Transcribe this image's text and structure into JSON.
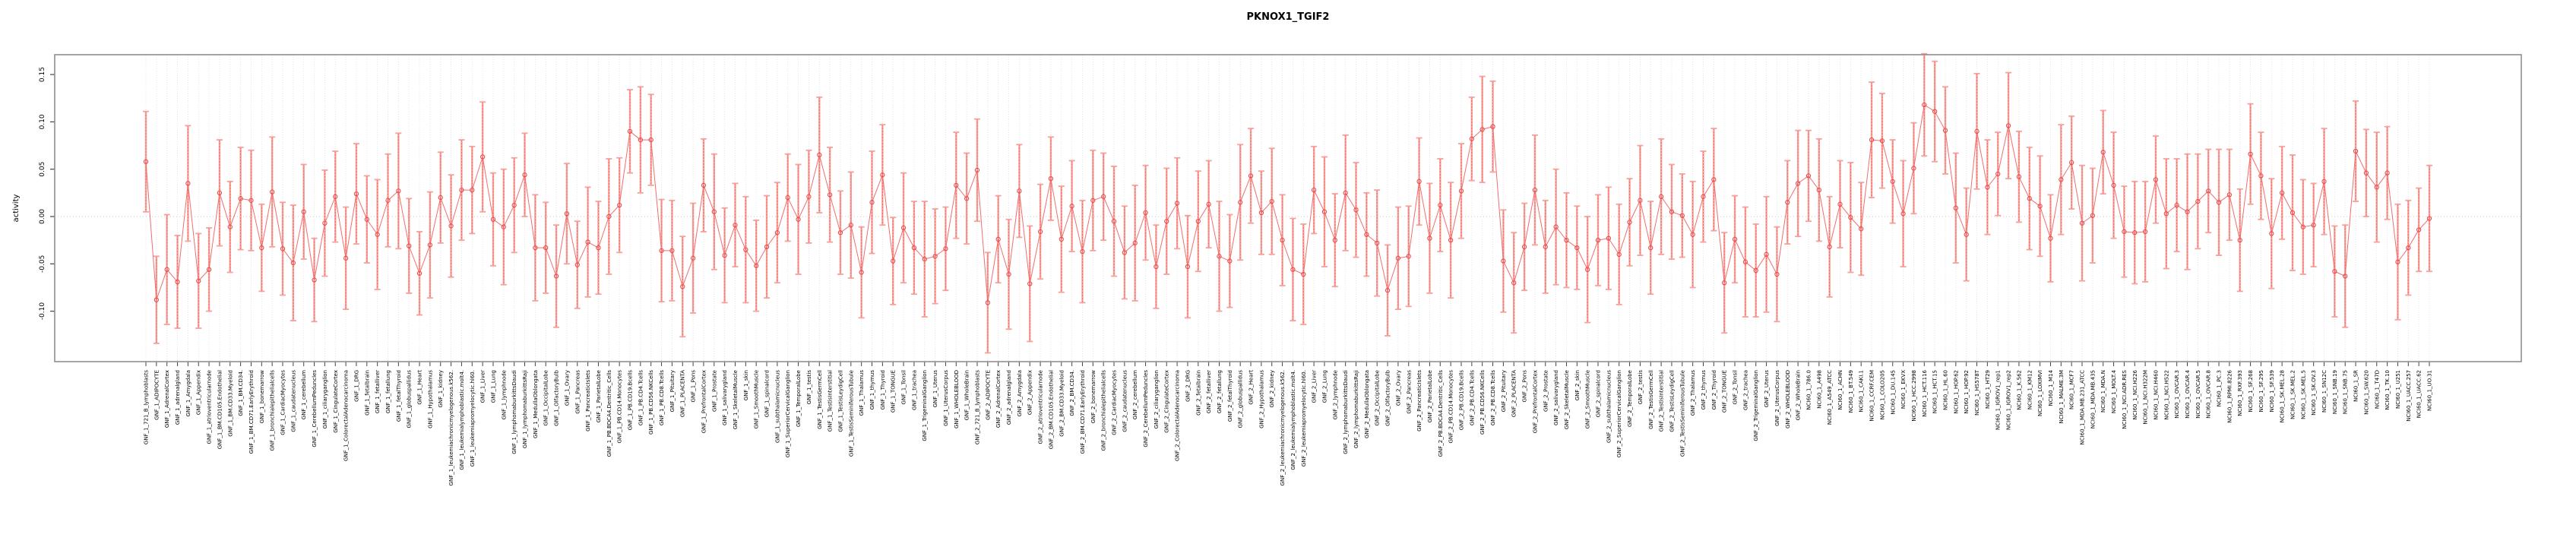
{
  "title": "PKNOX1_TGIF2",
  "colors": {
    "point": "#e84a4a",
    "line": "#f26d6d",
    "error_bar": "#f8a09a",
    "error_bar_inner": "#ef5350",
    "grid": "#dedede",
    "zero_line": "#cccccc",
    "box": "#8f8f8f",
    "tick": "#444444",
    "text": "#000000"
  },
  "chart_data": {
    "type": "line",
    "title": "PKNOX1_TGIF2",
    "xlabel": "",
    "ylabel": "activity",
    "ylim": [
      -0.153,
      0.171
    ],
    "grid": "vertical dotted gridline at every category; dotted horizontal line at 0",
    "legend": "none",
    "marker": "open-circle with salmon error bars (capped)",
    "yticks": [
      0.15,
      0.1,
      0.05,
      0.0,
      -0.05,
      -0.1
    ],
    "ytick_labels": [
      "0.15",
      "0.10",
      "0.05",
      "0.00",
      "-0.05",
      "-0.10"
    ],
    "categories": [
      "GNF_1_721_B_lymphoblasts",
      "GNF_1_ADIPOCYTE",
      "GNF_1_AdrenalCortex",
      "GNF_1_adrenalgland",
      "GNF_1_Amygdala",
      "GNF_1_Appendix",
      "GNF_1_atrioventricularnode",
      "GNF_1_BM.CD105.Endothelial",
      "GNF_1_BM.CD33.Myeloid",
      "GNF_1_BM.CD34.",
      "GNF_1_BM.CD71.EarlyErythroid",
      "GNF_1_bonemarrow",
      "GNF_1_bronchialepithelialcells",
      "GNF_1_CardiacMyocytes",
      "GNF_1_caudatenucleus",
      "GNF_1_cerebellum",
      "GNF_1_CerebellumPeduncles",
      "GNF_1_ciliaryganglion",
      "GNF_1_CingulateCortex",
      "GNF_1_ColorectalAdenocarcinoma",
      "GNF_1_DRG",
      "GNF_1_fetalbrain",
      "GNF_1_fetalliver",
      "GNF_1_fetallung",
      "GNF_1_fetalThyroid",
      "GNF_1_globuspallidus",
      "GNF_1_Heart",
      "GNF_1_Hypothalamus",
      "GNF_1_kidney",
      "GNF_1_leukemiachronicmyelogenous.k562.",
      "GNF_1_leukemialymphoblastic.molt4.",
      "GNF_1_leukemiapromyelocytic.hl60.",
      "GNF_1_Liver",
      "GNF_1_Lung",
      "GNF_1_lymphnode",
      "GNF_1_lymphomaburkittsDaudi",
      "GNF_1_lymphomaburkittsRaji",
      "GNF_1_MedullaOblongata",
      "GNF_1_OccipitalLobe",
      "GNF_1_OlfactoryBulb",
      "GNF_1_Ovary",
      "GNF_1_Pancreas",
      "GNF_1_PancreaticIslets",
      "GNF_1_ParietalLobe",
      "GNF_1_PB.BDCA4.Dentritic_Cells",
      "GNF_1_PB.CD14.Monocytes",
      "GNF_1_PB.CD19.Bcells",
      "GNF_1_PB.CD4.Tcells",
      "GNF_1_PB.CD56.NKCells",
      "GNF_1_PB.CD8.Tcells",
      "GNF_1_Pituitary",
      "GNF_1_PLACENTA",
      "GNF_1_Pons",
      "GNF_1_PrefrontalCortex",
      "GNF_1_Prostate",
      "GNF_1_salivarygland",
      "GNF_1_SkeletalMuscle",
      "GNF_1_skin",
      "GNF_1_SmoothMuscle",
      "GNF_1_spinalcord",
      "GNF_1_subthalamicnucleus",
      "GNF_1_SuperiorCervicalGanglion",
      "GNF_1_TemporalLobe",
      "GNF_1_testis",
      "GNF_1_TestisGermCell",
      "GNF_1_TestisInterstitial",
      "GNF_1_TestisLeydigCell",
      "GNF_1_TestisSeminiferousTubule",
      "GNF_1_Thalamus",
      "GNF_1_thymus",
      "GNF_1_Thyroid",
      "GNF_1_TONGUE",
      "GNF_1_Tonsil",
      "GNF_1_trachea",
      "GNF_1_TrigeminalGanglion",
      "GNF_1_Uterus",
      "GNF_1_UterusCorpus",
      "GNF_1_WHOLEBLOOD",
      "GNF_1_WholeBrain",
      "GNF_2_721_B_lymphoblasts",
      "GNF_2_ADIPOCYTE",
      "GNF_2_AdrenalCortex",
      "GNF_2_adrenalgland",
      "GNF_2_Amygdala",
      "GNF_2_Appendix",
      "GNF_2_atrioventricularnode",
      "GNF_2_BM.CD105.Endothelial",
      "GNF_2_BM.CD33.Myeloid",
      "GNF_2_BM.CD34.",
      "GNF_2_BM.CD71.EarlyErythroid",
      "GNF_2_bonemarrow",
      "GNF_2_bronchialepithelialcells",
      "GNF_2_CardiacMyocytes",
      "GNF_2_caudatenucleus",
      "GNF_2_cerebellum",
      "GNF_2_CerebellumPeduncles",
      "GNF_2_ciliaryganglion",
      "GNF_2_CingulateCortex",
      "GNF_2_ColorectalAdenocarcinoma",
      "GNF_2_DRG",
      "GNF_2_fetalbrain",
      "GNF_2_fetalliver",
      "GNF_2_fetallung",
      "GNF_2_fetalThyroid",
      "GNF_2_globuspallidus",
      "GNF_2_Heart",
      "GNF_2_Hypothalamus",
      "GNF_2_kidney",
      "GNF_2_leukemiachronicmyelogenous.k562.",
      "GNF_2_leukemialymphoblastic.molt4.",
      "GNF_2_leukemiapromyelocytic.hl60.",
      "GNF_2_Liver",
      "GNF_2_Lung",
      "GNF_2_lymphnode",
      "GNF_2_lymphomaburkittsDaudi",
      "GNF_2_lymphomaburkittsRaji",
      "GNF_2_MedullaOblongata",
      "GNF_2_OccipitalLobe",
      "GNF_2_OlfactoryBulb",
      "GNF_2_Ovary",
      "GNF_2_Pancreas",
      "GNF_2_PancreaticIslets",
      "GNF_2_ParietalLobe",
      "GNF_2_PB.BDCA4.Dentritic_Cells",
      "GNF_2_PB.CD14.Monocytes",
      "GNF_2_PB.CD19.Bcells",
      "GNF_2_PB.CD4.Tcells",
      "GNF_2_PB.CD56.NKCells",
      "GNF_2_PB.CD8.Tcells",
      "GNF_2_Pituitary",
      "GNF_2_PLACENTA",
      "GNF_2_Pons",
      "GNF_2_PrefrontalCortex",
      "GNF_2_Prostate",
      "GNF_2_salivarygland",
      "GNF_2_SkeletalMuscle",
      "GNF_2_skin",
      "GNF_2_SmoothMuscle",
      "GNF_2_spinalcord",
      "GNF_2_subthalamicnucleus",
      "GNF_2_SuperiorCervicalGanglion",
      "GNF_2_TemporalLobe",
      "GNF_2_testis",
      "GNF_2_TestisGermCell",
      "GNF_2_TestisInterstitial",
      "GNF_2_TestisLeydigCell",
      "GNF_2_TestisSeminiferousTubule",
      "GNF_2_Thalamus",
      "GNF_2_thymus",
      "GNF_2_Thyroid",
      "GNF_2_TONGUE",
      "GNF_2_Tonsil",
      "GNF_2_trachea",
      "GNF_2_TrigeminalGanglion",
      "GNF_2_Uterus",
      "GNF_2_UterusCorpus",
      "GNF_2_WHOLEBLOOD",
      "GNF_2_WholeBrain",
      "NCI60_1_786.0",
      "NCI60_1_A498",
      "NCI60_1_A549_ATCC",
      "NCI60_1_ACHN",
      "NCI60_1_BT.549",
      "NCI60_1_CAKI.1",
      "NCI60_1_CCRF.CEM",
      "NCI60_1_COLO205",
      "NCI60_1_DU.145",
      "NCI60_1_EKVX",
      "NCI60_1_HCC.2998",
      "NCI60_1_HCT.116",
      "NCI60_1_HCT.15",
      "NCI60_1_HL.60",
      "NCI60_1_HOP.62",
      "NCI60_1_HOP.92",
      "NCI60_1_HS578T",
      "NCI60_1_HT29",
      "NCI60_1_IGROV1_rep1",
      "NCI60_1_IGROV1_rep2",
      "NCI60_1_K.562",
      "NCI60_1_KM12",
      "NCI60_1_LOXIMVI",
      "NCI60_1_M14",
      "NCI60_1_MALME.3M",
      "NCI60_1_MCF7",
      "NCI60_1_MDA.MB.231_ATCC",
      "NCI60_1_MDA.MB.435",
      "NCI60_1_MDA.N",
      "NCI60_1_MOLT.4",
      "NCI60_1_NCI.ADR.RES",
      "NCI60_1_NCI.H226",
      "NCI60_1_NCI.H322M",
      "NCI60_1_NCI.H460",
      "NCI60_1_NCI.H522",
      "NCI60_1_OVCAR.3",
      "NCI60_1_OVCAR.4",
      "NCI60_1_OVCAR.5",
      "NCI60_1_OVCAR.8",
      "NCI60_1_PC.3",
      "NCI60_1_RPMI.8226",
      "NCI60_1_RXF.393",
      "NCI60_1_SF.268",
      "NCI60_1_SF.295",
      "NCI60_1_SF.539",
      "NCI60_1_SK.MEL.28",
      "NCI60_1_SK.MEL.2",
      "NCI60_1_SK.MEL.5",
      "NCI60_1_SK.OV.3",
      "NCI60_1_SN12C",
      "NCI60_1_SNB.19",
      "NCI60_1_SNB.75",
      "NCI60_1_SR",
      "NCI60_1_SW.620",
      "NCI60_1_T47D",
      "NCI60_1_TK.10",
      "NCI60_1_U251",
      "NCI60_1_UACC.257",
      "NCI60_1_UACC.62",
      "NCI60_1_UO.31"
    ],
    "values": [
      0.058,
      -0.088,
      -0.056,
      -0.069,
      0.035,
      -0.068,
      -0.056,
      0.025,
      -0.011,
      0.019,
      0.017,
      -0.033,
      0.026,
      -0.034,
      -0.049,
      0.005,
      -0.067,
      -0.007,
      0.021,
      -0.044,
      0.024,
      -0.003,
      -0.019,
      0.017,
      0.027,
      -0.031,
      -0.06,
      -0.03,
      0.02,
      -0.01,
      0.028,
      0.028,
      0.063,
      -0.003,
      -0.011,
      0.012,
      0.044,
      -0.033,
      -0.033,
      -0.063,
      0.003,
      -0.051,
      -0.027,
      -0.033,
      0.0,
      0.012,
      0.09,
      0.081,
      0.081,
      -0.036,
      -0.036,
      -0.074,
      -0.044,
      0.033,
      0.005,
      -0.041,
      -0.009,
      -0.035,
      -0.052,
      -0.032,
      -0.017,
      0.02,
      -0.003,
      0.021,
      0.065,
      0.023,
      -0.017,
      -0.009,
      -0.059,
      0.015,
      0.044,
      -0.047,
      -0.012,
      -0.033,
      -0.045,
      -0.042,
      -0.034,
      0.033,
      0.019,
      0.049,
      -0.091,
      -0.024,
      -0.061,
      0.027,
      -0.071,
      -0.016,
      0.04,
      -0.024,
      0.011,
      -0.037,
      0.017,
      0.021,
      -0.005,
      -0.038,
      -0.028,
      0.004,
      -0.053,
      -0.005,
      0.014,
      -0.053,
      -0.005,
      0.013,
      -0.042,
      -0.047,
      0.015,
      0.043,
      0.004,
      0.016,
      -0.025,
      -0.056,
      -0.061,
      0.028,
      0.005,
      -0.025,
      0.025,
      0.007,
      -0.019,
      -0.028,
      -0.078,
      -0.044,
      -0.042,
      0.037,
      -0.023,
      0.012,
      -0.025,
      0.027,
      0.082,
      0.092,
      0.095,
      -0.047,
      -0.07,
      -0.032,
      0.028,
      -0.032,
      -0.011,
      -0.025,
      -0.033,
      -0.056,
      -0.025,
      -0.023,
      -0.04,
      -0.006,
      0.017,
      -0.033,
      0.021,
      0.005,
      0.001,
      -0.019,
      0.021,
      0.039,
      -0.07,
      -0.024,
      -0.048,
      -0.057,
      -0.04,
      -0.061,
      0.015,
      0.035,
      0.043,
      0.028,
      -0.032,
      0.013,
      -0.001,
      -0.013,
      0.081,
      0.08,
      0.037,
      0.003,
      0.051,
      0.118,
      0.111,
      0.091,
      0.009,
      -0.019,
      0.09,
      0.031,
      0.045,
      0.096,
      0.042,
      0.019,
      0.011,
      -0.023,
      0.039,
      0.057,
      -0.007,
      0.001,
      0.068,
      0.033,
      -0.016,
      -0.017,
      -0.016,
      0.039,
      0.003,
      0.012,
      0.005,
      0.016,
      0.027,
      0.015,
      0.023,
      -0.025,
      0.066,
      0.043,
      -0.018,
      0.025,
      0.004,
      -0.011,
      -0.009,
      0.037,
      -0.058,
      -0.063,
      0.069,
      0.046,
      0.031,
      0.046,
      -0.048,
      -0.033,
      -0.014,
      -0.002
    ],
    "errors": [
      0.053,
      0.046,
      0.058,
      0.049,
      0.061,
      0.05,
      0.044,
      0.056,
      0.048,
      0.054,
      0.053,
      0.046,
      0.058,
      0.049,
      0.061,
      0.05,
      0.044,
      0.056,
      0.048,
      0.054,
      0.053,
      0.046,
      0.058,
      0.049,
      0.061,
      0.05,
      0.044,
      0.056,
      0.048,
      0.054,
      0.053,
      0.046,
      0.058,
      0.049,
      0.061,
      0.05,
      0.044,
      0.056,
      0.048,
      0.054,
      0.053,
      0.046,
      0.058,
      0.049,
      0.061,
      0.05,
      0.044,
      0.056,
      0.048,
      0.054,
      0.053,
      0.053,
      0.058,
      0.049,
      0.061,
      0.05,
      0.044,
      0.056,
      0.048,
      0.054,
      0.053,
      0.046,
      0.058,
      0.049,
      0.061,
      0.05,
      0.044,
      0.056,
      0.048,
      0.054,
      0.053,
      0.046,
      0.058,
      0.049,
      0.061,
      0.05,
      0.044,
      0.056,
      0.048,
      0.054,
      0.053,
      0.046,
      0.058,
      0.049,
      0.061,
      0.05,
      0.044,
      0.056,
      0.048,
      0.054,
      0.053,
      0.046,
      0.058,
      0.049,
      0.061,
      0.05,
      0.044,
      0.056,
      0.048,
      0.054,
      0.053,
      0.046,
      0.058,
      0.049,
      0.061,
      0.05,
      0.044,
      0.056,
      0.048,
      0.054,
      0.053,
      0.046,
      0.058,
      0.049,
      0.061,
      0.05,
      0.044,
      0.056,
      0.048,
      0.054,
      0.053,
      0.046,
      0.058,
      0.049,
      0.061,
      0.05,
      0.044,
      0.056,
      0.048,
      0.054,
      0.053,
      0.046,
      0.058,
      0.049,
      0.061,
      0.05,
      0.044,
      0.056,
      0.048,
      0.054,
      0.053,
      0.046,
      0.058,
      0.049,
      0.061,
      0.05,
      0.044,
      0.056,
      0.048,
      0.054,
      0.053,
      0.046,
      0.058,
      0.049,
      0.061,
      0.05,
      0.044,
      0.056,
      0.048,
      0.054,
      0.053,
      0.046,
      0.058,
      0.049,
      0.061,
      0.05,
      0.044,
      0.056,
      0.048,
      0.054,
      0.053,
      0.046,
      0.058,
      0.049,
      0.061,
      0.05,
      0.044,
      0.056,
      0.048,
      0.054,
      0.053,
      0.046,
      0.058,
      0.049,
      0.061,
      0.05,
      0.044,
      0.056,
      0.048,
      0.054,
      0.053,
      0.046,
      0.058,
      0.049,
      0.061,
      0.05,
      0.044,
      0.056,
      0.048,
      0.054,
      0.053,
      0.046,
      0.058,
      0.049,
      0.061,
      0.05,
      0.044,
      0.056,
      0.048,
      0.054,
      0.053,
      0.046,
      0.058,
      0.049,
      0.061,
      0.05,
      0.044,
      0.056
    ]
  }
}
